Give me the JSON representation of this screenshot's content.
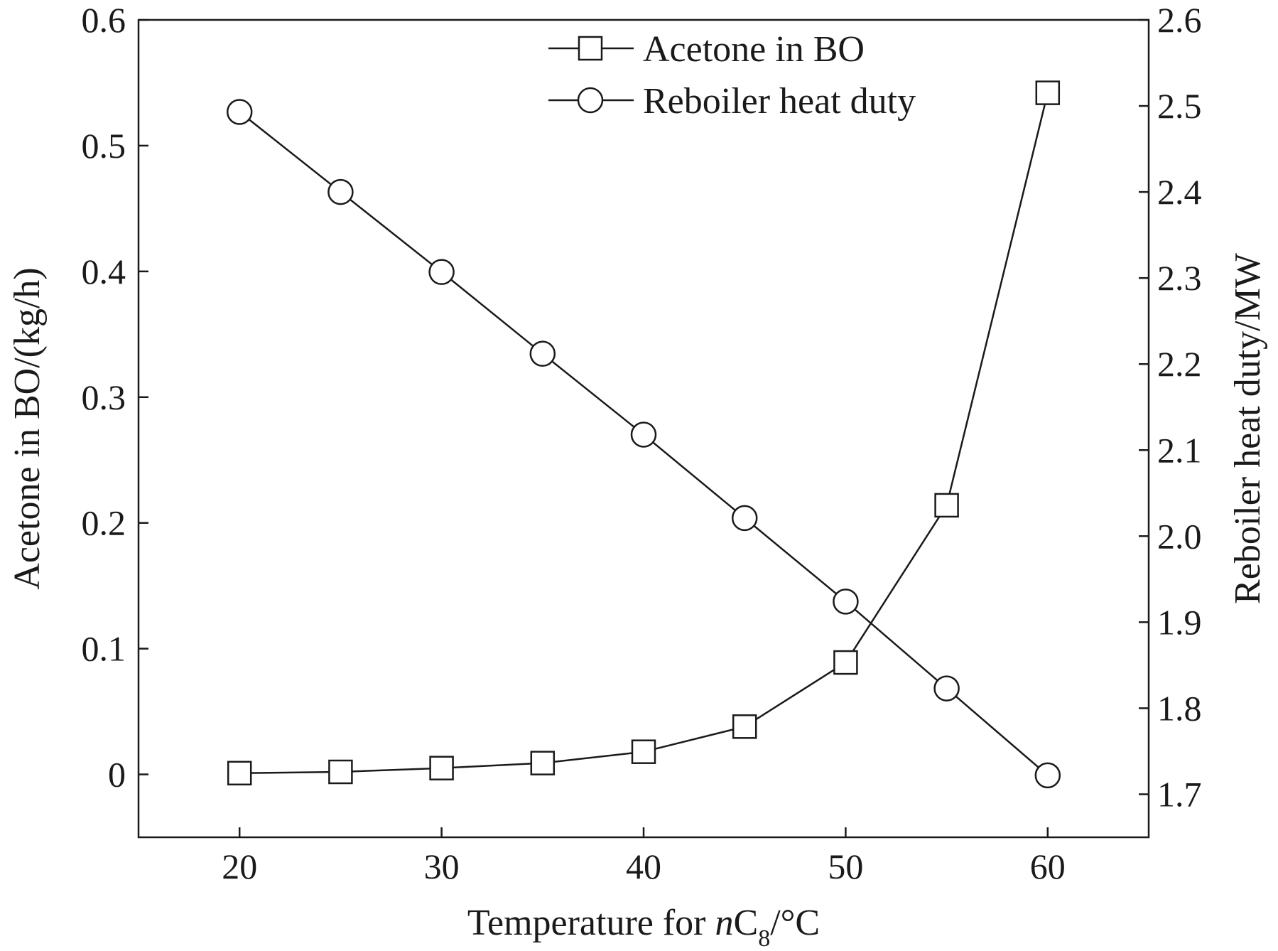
{
  "chart_data": {
    "type": "line",
    "x": [
      20,
      25,
      30,
      35,
      40,
      45,
      50,
      55,
      60
    ],
    "xlim": [
      15,
      65
    ],
    "x_ticks": [
      20,
      30,
      40,
      50,
      60
    ],
    "xlabel_parts": {
      "prefix": "Temperature for ",
      "italic": "n",
      "main": "C",
      "sub": "8",
      "suffix": "/°C"
    },
    "left_axis": {
      "label": "Acetone in BO/(kg/h)",
      "lim": [
        -0.05,
        0.6
      ],
      "ticks": [
        0,
        0.1,
        0.2,
        0.3,
        0.4,
        0.5,
        0.6
      ],
      "tick_labels": [
        "0",
        "0.1",
        "0.2",
        "0.3",
        "0.4",
        "0.5",
        "0.6"
      ]
    },
    "right_axis": {
      "label": "Reboiler heat duty/MW",
      "lim": [
        1.65,
        2.6
      ],
      "ticks": [
        1.7,
        1.8,
        1.9,
        2.0,
        2.1,
        2.2,
        2.3,
        2.4,
        2.5,
        2.6
      ],
      "tick_labels": [
        "1.7",
        "1.8",
        "1.9",
        "2.0",
        "2.1",
        "2.2",
        "2.3",
        "2.4",
        "2.5",
        "2.6"
      ]
    },
    "series": [
      {
        "name": "Acetone in BO",
        "axis": "left",
        "marker": "square",
        "values": [
          0.001,
          0.002,
          0.005,
          0.009,
          0.018,
          0.038,
          0.089,
          0.214,
          0.542
        ]
      },
      {
        "name": "Reboiler heat duty",
        "axis": "right",
        "marker": "circle",
        "values": [
          2.493,
          2.4,
          2.307,
          2.212,
          2.118,
          2.021,
          1.924,
          1.823,
          1.722
        ]
      }
    ],
    "legend_position": "top-center",
    "grid": false
  }
}
